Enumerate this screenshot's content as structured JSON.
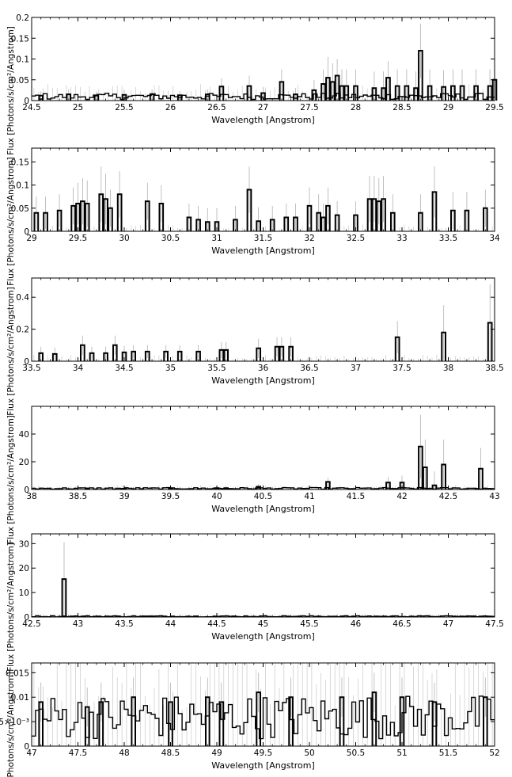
{
  "chart_data": [
    {
      "type": "step",
      "xlabel": "Wavelength [Angstrom]",
      "ylabel": "Flux [Photons/s/cm²/Angstrom]",
      "xlim": [
        24.5,
        29.5
      ],
      "ylim": [
        0,
        0.2
      ],
      "xticks": [
        "24.5",
        "25",
        "25.5",
        "26",
        "26.5",
        "27",
        "27.5",
        "28",
        "28.5",
        "29",
        "29.5"
      ],
      "yticks": [
        "0",
        "0.05",
        "0.1",
        "0.15",
        "0.2"
      ],
      "bin": 0.04,
      "x": [
        24.6,
        24.9,
        25.2,
        25.5,
        25.8,
        26.1,
        26.4,
        26.55,
        26.85,
        27.0,
        27.2,
        27.35,
        27.55,
        27.65,
        27.7,
        27.75,
        27.8,
        27.85,
        27.9,
        28.0,
        28.2,
        28.3,
        28.35,
        28.45,
        28.55,
        28.65,
        28.7,
        28.8,
        28.95,
        29.05,
        29.15,
        29.3,
        29.45,
        29.5
      ],
      "y": [
        0.012,
        0.015,
        0.012,
        0.014,
        0.015,
        0.013,
        0.015,
        0.034,
        0.035,
        0.018,
        0.045,
        0.015,
        0.025,
        0.04,
        0.055,
        0.045,
        0.06,
        0.035,
        0.035,
        0.035,
        0.03,
        0.03,
        0.055,
        0.035,
        0.035,
        0.03,
        0.12,
        0.035,
        0.033,
        0.035,
        0.035,
        0.035,
        0.035,
        0.05
      ],
      "err": [
        0.01,
        0.012,
        0.01,
        0.012,
        0.012,
        0.01,
        0.012,
        0.02,
        0.025,
        0.015,
        0.03,
        0.015,
        0.025,
        0.035,
        0.05,
        0.045,
        0.04,
        0.04,
        0.04,
        0.04,
        0.04,
        0.04,
        0.04,
        0.04,
        0.04,
        0.04,
        0.065,
        0.04,
        0.04,
        0.04,
        0.04,
        0.04,
        0.04,
        0.04
      ],
      "noise_y": 0.01
    },
    {
      "type": "step",
      "xlabel": "Wavelength [Angstrom]",
      "ylabel": "Flux [Photons/s/cm²/Angstrom]",
      "xlim": [
        29,
        34
      ],
      "ylim": [
        0,
        0.18
      ],
      "xticks": [
        "29",
        "29.5",
        "30",
        "30.5",
        "31",
        "31.5",
        "32",
        "32.5",
        "33",
        "33.5",
        "34"
      ],
      "yticks": [
        "0",
        "0.05",
        "0.1",
        "0.15"
      ],
      "bin": 0.04,
      "x": [
        29.05,
        29.15,
        29.3,
        29.45,
        29.5,
        29.55,
        29.6,
        29.75,
        29.8,
        29.85,
        29.95,
        30.25,
        30.4,
        30.7,
        30.8,
        30.9,
        31.0,
        31.2,
        31.35,
        31.45,
        31.6,
        31.75,
        31.85,
        32.0,
        32.1,
        32.15,
        32.2,
        32.3,
        32.5,
        32.65,
        32.7,
        32.75,
        32.8,
        32.9,
        33.2,
        33.35,
        33.55,
        33.7,
        33.9
      ],
      "y": [
        0.04,
        0.04,
        0.045,
        0.055,
        0.06,
        0.065,
        0.06,
        0.08,
        0.07,
        0.05,
        0.08,
        0.065,
        0.06,
        0.03,
        0.025,
        0.02,
        0.02,
        0.025,
        0.09,
        0.022,
        0.025,
        0.03,
        0.03,
        0.055,
        0.04,
        0.03,
        0.055,
        0.035,
        0.035,
        0.07,
        0.07,
        0.065,
        0.07,
        0.04,
        0.04,
        0.085,
        0.045,
        0.045,
        0.05
      ],
      "err": [
        0.035,
        0.035,
        0.035,
        0.04,
        0.045,
        0.05,
        0.05,
        0.06,
        0.055,
        0.04,
        0.05,
        0.04,
        0.04,
        0.03,
        0.03,
        0.03,
        0.03,
        0.03,
        0.05,
        0.03,
        0.03,
        0.03,
        0.03,
        0.04,
        0.04,
        0.03,
        0.04,
        0.03,
        0.03,
        0.05,
        0.05,
        0.05,
        0.05,
        0.04,
        0.04,
        0.055,
        0.04,
        0.04,
        0.04
      ],
      "noise_y": 0
    },
    {
      "type": "step",
      "xlabel": "Wavelength [Angstrom]",
      "ylabel": "Flux [Photons/s/cm²/Angstrom]",
      "xlim": [
        33.5,
        38.5
      ],
      "ylim": [
        0,
        0.52
      ],
      "xticks": [
        "33.5",
        "34",
        "34.5",
        "35",
        "35.5",
        "36",
        "36.5",
        "37",
        "37.5",
        "38",
        "38.5"
      ],
      "yticks": [
        "0",
        "0.2",
        "0.4"
      ],
      "bin": 0.04,
      "x": [
        33.6,
        33.75,
        34.05,
        34.15,
        34.3,
        34.4,
        34.5,
        34.6,
        34.75,
        34.95,
        35.1,
        35.3,
        35.55,
        35.6,
        35.95,
        36.15,
        36.2,
        36.3,
        37.45,
        37.95,
        38.45
      ],
      "y": [
        0.05,
        0.045,
        0.1,
        0.05,
        0.05,
        0.1,
        0.055,
        0.06,
        0.06,
        0.06,
        0.06,
        0.06,
        0.07,
        0.07,
        0.08,
        0.09,
        0.09,
        0.09,
        0.15,
        0.18,
        0.24
      ],
      "err": [
        0.04,
        0.04,
        0.06,
        0.04,
        0.04,
        0.06,
        0.04,
        0.04,
        0.04,
        0.04,
        0.04,
        0.04,
        0.05,
        0.05,
        0.06,
        0.06,
        0.06,
        0.06,
        0.1,
        0.17,
        0.24
      ],
      "noise_y": 0
    },
    {
      "type": "step",
      "xlabel": "Wavelength [Angstrom]",
      "ylabel": "Flux [Photons/s/cm²/Angstrom]",
      "xlim": [
        38,
        43
      ],
      "ylim": [
        0,
        60
      ],
      "xticks": [
        "38",
        "38.5",
        "39",
        "39.5",
        "40",
        "40.5",
        "41",
        "41.5",
        "42",
        "42.5",
        "43"
      ],
      "yticks": [
        "0",
        "20",
        "40"
      ],
      "bin": 0.04,
      "x": [
        38.6,
        39.0,
        39.5,
        40.0,
        40.1,
        40.45,
        41.2,
        41.85,
        42.0,
        42.2,
        42.25,
        42.35,
        42.45,
        42.85
      ],
      "y": [
        0.5,
        0.6,
        0.6,
        1.0,
        1.0,
        2.0,
        5.5,
        5.0,
        5.0,
        31,
        16,
        3,
        18,
        15
      ],
      "err": [
        0.8,
        1,
        1,
        1.5,
        1.5,
        2,
        3,
        4,
        5,
        23,
        20,
        10,
        18,
        15
      ],
      "noise_y": 0.8
    },
    {
      "type": "step",
      "xlabel": "Wavelength [Angstrom]",
      "ylabel": "Flux [Photons/s/cm²/Angstrom]",
      "xlim": [
        42.5,
        47.5
      ],
      "ylim": [
        0,
        34
      ],
      "xticks": [
        "42.5",
        "43",
        "43.5",
        "44",
        "44.5",
        "45",
        "45.5",
        "46",
        "46.5",
        "47",
        "47.5"
      ],
      "yticks": [
        "0",
        "10",
        "20",
        "30"
      ],
      "bin": 0.04,
      "x": [
        42.85
      ],
      "y": [
        15.5
      ],
      "err": [
        15
      ],
      "noise_y": 0.3
    },
    {
      "type": "step",
      "xlabel": "Wavelength [Angstrom]",
      "ylabel": "Flux [Photons/s/cm²/Angstrom]",
      "xlim": [
        47,
        52
      ],
      "ylim": [
        0,
        0.017
      ],
      "xticks": [
        "47",
        "47.5",
        "48",
        "48.5",
        "49",
        "49.5",
        "50",
        "50.5",
        "51",
        "51.5",
        "52"
      ],
      "yticks": [
        "0",
        "5×10⁻³",
        "0.01",
        "0.015"
      ],
      "bin": 0.04,
      "x": [
        47.1,
        47.6,
        47.75,
        48.1,
        48.5,
        48.9,
        49.05,
        49.45,
        49.8,
        50.35,
        50.7,
        51.0,
        51.35,
        51.9
      ],
      "y": [
        0.009,
        0.008,
        0.009,
        0.01,
        0.009,
        0.01,
        0.009,
        0.011,
        0.01,
        0.01,
        0.011,
        0.01,
        0.009,
        0.01
      ],
      "err": [
        0.004,
        0.004,
        0.004,
        0.004,
        0.004,
        0.004,
        0.004,
        0.004,
        0.004,
        0.004,
        0.004,
        0.004,
        0.004,
        0.004
      ],
      "noise_y": 0.006
    }
  ]
}
